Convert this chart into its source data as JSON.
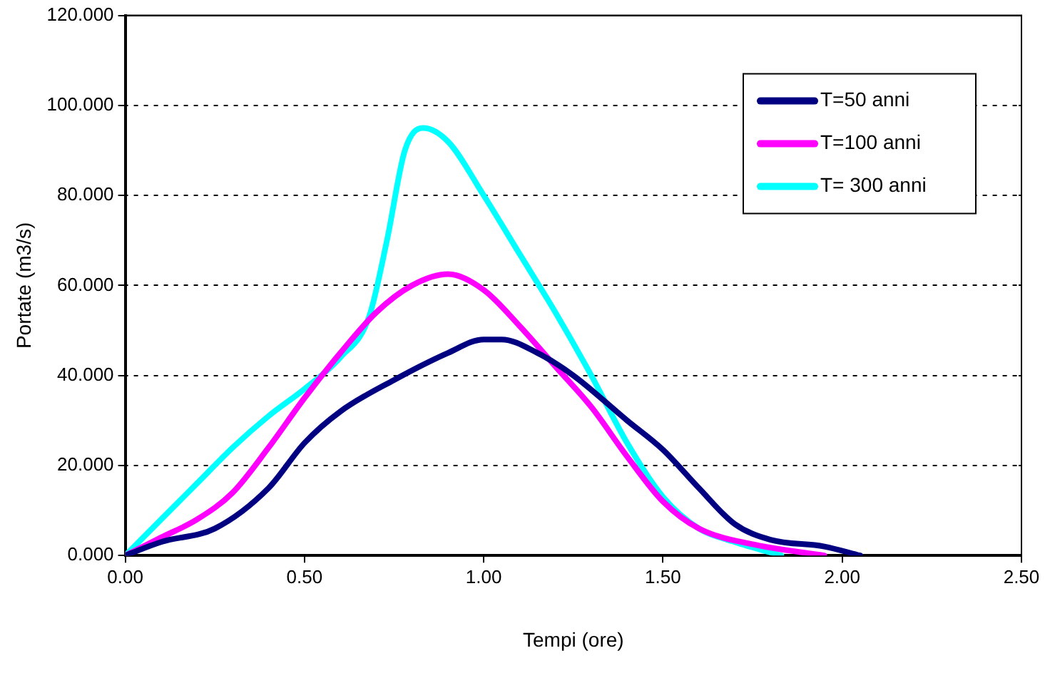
{
  "chart_data": {
    "type": "line",
    "xlabel": "Tempi (ore)",
    "ylabel": "Portate (m3/s)",
    "xlim": [
      0,
      2.5
    ],
    "xticks": [
      {
        "value": 0,
        "label": "0.00"
      },
      {
        "value": 0.5,
        "label": "0.50"
      },
      {
        "value": 1,
        "label": "1.00"
      },
      {
        "value": 1.5,
        "label": "1.50"
      },
      {
        "value": 2,
        "label": "2.00"
      },
      {
        "value": 2.5,
        "label": "2.50"
      }
    ],
    "ylim": [
      0,
      120
    ],
    "yticks": [
      {
        "value": 0,
        "label": "0.000"
      },
      {
        "value": 20,
        "label": "20.000"
      },
      {
        "value": 40,
        "label": "40.000"
      },
      {
        "value": 60,
        "label": "60.000"
      },
      {
        "value": 80,
        "label": "80.000"
      },
      {
        "value": 100,
        "label": "100.000"
      },
      {
        "value": 120,
        "label": "120.000"
      }
    ],
    "grid": "y",
    "legend": "top right",
    "marker": "none",
    "line_style": "solid",
    "series": [
      {
        "name": "T=50 anni",
        "color": "#000080",
        "x": [
          0,
          0.1,
          0.25,
          0.4,
          0.5,
          0.6,
          0.75,
          0.9,
          1.0,
          1.05,
          1.15,
          1.25,
          1.4,
          1.5,
          1.6,
          1.7,
          1.8,
          1.95,
          2.05
        ],
        "values": [
          0,
          3,
          6,
          15,
          25,
          32,
          39,
          45,
          48,
          48,
          45,
          40,
          30,
          23.5,
          15,
          7,
          3.5,
          2,
          0
        ]
      },
      {
        "name": "T=100 anni",
        "color": "#ff00ff",
        "x": [
          0,
          0.1,
          0.2,
          0.3,
          0.4,
          0.5,
          0.6,
          0.7,
          0.8,
          0.9,
          1.0,
          1.1,
          1.2,
          1.3,
          1.4,
          1.5,
          1.6,
          1.75,
          1.95
        ],
        "values": [
          0,
          4,
          8,
          14,
          24,
          35,
          45,
          54,
          60,
          62.5,
          59,
          51,
          42,
          33,
          22,
          12,
          6,
          2.5,
          0
        ]
      },
      {
        "name": "T= 300 anni",
        "color": "#00ffff",
        "x": [
          0,
          0.1,
          0.2,
          0.3,
          0.4,
          0.5,
          0.6,
          0.68,
          0.73,
          0.78,
          0.83,
          0.9,
          1.0,
          1.1,
          1.2,
          1.3,
          1.4,
          1.5,
          1.6,
          1.7,
          1.83
        ],
        "values": [
          0,
          8,
          16,
          24,
          31,
          37,
          44,
          53,
          70,
          90,
          95,
          92,
          80,
          67,
          54,
          40,
          25,
          13,
          6,
          3,
          0
        ]
      }
    ]
  }
}
